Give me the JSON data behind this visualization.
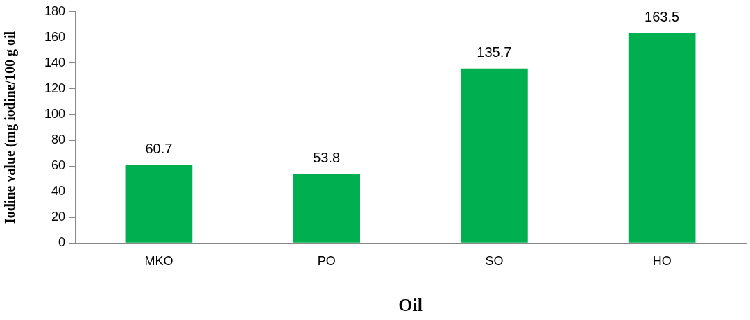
{
  "chart_data": {
    "type": "bar",
    "xlabel": "Oil",
    "ylabel": "Iodine value (mg iodine/100 g oil",
    "categories": [
      "MKO",
      "PO",
      "SO",
      "HO"
    ],
    "values": [
      60.7,
      53.8,
      135.7,
      163.5
    ],
    "color": "#00b050",
    "ylim": [
      0,
      180
    ],
    "yticks": [
      0,
      20,
      40,
      60,
      80,
      100,
      120,
      140,
      160,
      180
    ],
    "grid": false,
    "legend": false,
    "data_labels": true
  }
}
